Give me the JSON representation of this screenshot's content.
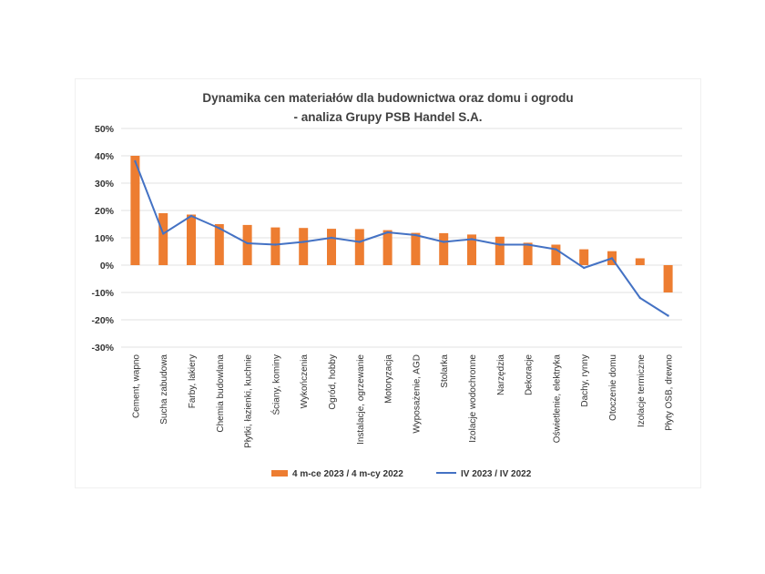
{
  "chart_data": {
    "type": "bar",
    "title": "Dynamika cen materiałów dla budownictwa oraz domu i ogrodu",
    "subtitle": "- analiza Grupy PSB Handel S.A.",
    "categories": [
      "Cement, wapno",
      "Sucha zabudowa",
      "Farby, lakiery",
      "Chemia budowlana",
      "Płytki, łazienki, kuchnie",
      "Ściany, kominy",
      "Wykończenia",
      "Ogród, hobby",
      "Instalacje, ogrzewanie",
      "Motoryzacja",
      "Wyposażenie, AGD",
      "Stolarka",
      "Izolacje wodochronne",
      "Narzędzia",
      "Dekoracje",
      "Oświetlenie, elektryka",
      "Dachy, rynny",
      "Otoczenie domu",
      "Izolacje termiczne",
      "Płyty OSB, drewno"
    ],
    "series": [
      {
        "name": "4 m-ce 2023 / 4 m-cy 2022",
        "type": "bar",
        "color": "#ED7D31",
        "values": [
          40,
          19,
          18.5,
          15,
          14.7,
          13.8,
          13.6,
          13.3,
          13.2,
          12.8,
          11.8,
          11.7,
          11.2,
          10.4,
          8.2,
          7.5,
          5.8,
          5.1,
          2.5,
          -10
        ]
      },
      {
        "name": "IV 2023 / IV 2022",
        "type": "line",
        "color": "#4472C4",
        "values": [
          38,
          11.5,
          18,
          13.5,
          8,
          7.5,
          8.5,
          10,
          8.5,
          12,
          11,
          8.5,
          9.5,
          7.5,
          7.5,
          5.8,
          -1,
          2.5,
          -12,
          -18.5
        ]
      }
    ],
    "yticks": [
      "50%",
      "40%",
      "30%",
      "20%",
      "10%",
      "0%",
      "-10%",
      "-20%",
      "-30%"
    ],
    "ylim": [
      -30,
      50
    ],
    "grid": true,
    "legend": "bottom"
  }
}
